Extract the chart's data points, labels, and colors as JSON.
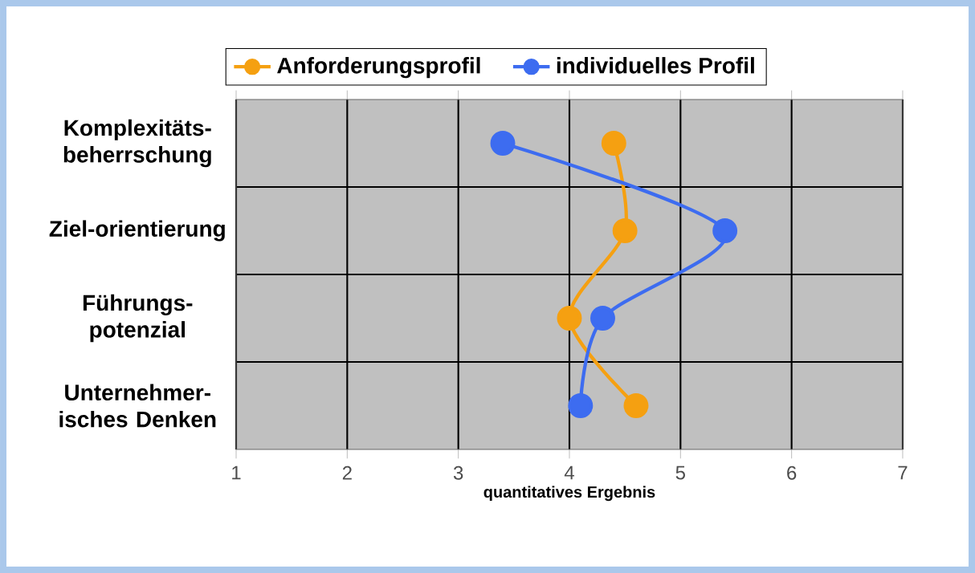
{
  "chart_data": {
    "type": "line",
    "orientation": "horizontal",
    "xlabel": "quantitatives Ergebnis",
    "categories": [
      "Komplexitäts-beherrschung",
      "Ziel-orientierung",
      "Führungs-potenzial",
      "Unternehmer-isches Denken"
    ],
    "series": [
      {
        "name": "Anforderungsprofil",
        "color": "#f5a011",
        "values": [
          4.4,
          4.5,
          4.0,
          4.6
        ]
      },
      {
        "name": "individuelles Profil",
        "color": "#3d6cf0",
        "values": [
          3.4,
          5.4,
          4.3,
          4.1
        ]
      }
    ],
    "xlim": [
      1,
      7
    ],
    "xticks": [
      1,
      2,
      3,
      4,
      5,
      6,
      7
    ],
    "grid": true,
    "legend": "top",
    "marker": "circle",
    "line_style": "solid"
  }
}
